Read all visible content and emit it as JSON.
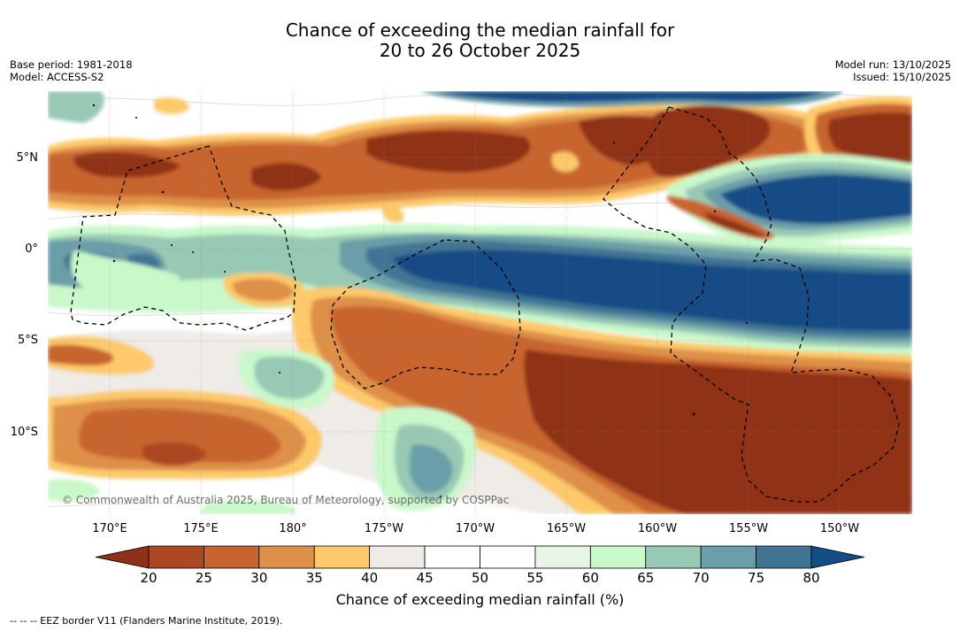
{
  "title_line1": "Chance of exceeding the median rainfall for",
  "title_line2": "20 to 26 October 2025",
  "base_period": "Base period: 1981-2018",
  "model": "Model: ACCESS-S2",
  "model_run": "Model run: 13/10/2025",
  "issued": "Issued: 15/10/2025",
  "credit": "© Commonwealth of Australia 2025, Bureau of Meteorology, supported by COSPPac",
  "colorbar_title": "Chance of exceeding median rainfall (%)",
  "footer": "-- -- -- EEZ border V11 (Flanders Marine Institute, 2019).",
  "chart_data": {
    "type": "map",
    "latitude_labels": [
      "5°N",
      "0°",
      "5°S",
      "10°S"
    ],
    "longitude_labels": [
      "170°E",
      "175°E",
      "180°",
      "175°W",
      "170°W",
      "165°W",
      "160°W",
      "155°W",
      "150°W"
    ],
    "colorbar": {
      "ticks": [
        20,
        25,
        30,
        35,
        40,
        45,
        50,
        55,
        60,
        65,
        70,
        75,
        80
      ],
      "tick_labels": [
        "20",
        "25",
        "30",
        "35",
        "40",
        "45",
        "50",
        "55",
        "60",
        "65",
        "70",
        "75",
        "80"
      ],
      "colors": [
        "#8f3119",
        "#ac4623",
        "#c8652f",
        "#de904a",
        "#fdc96a",
        "#efebe6",
        "#ffffff",
        "#ffffff",
        "#e7f4e6",
        "#c9f8cb",
        "#98c9b5",
        "#6a9ea8",
        "#3f7593",
        "#144c85"
      ],
      "extend": "both"
    }
  }
}
